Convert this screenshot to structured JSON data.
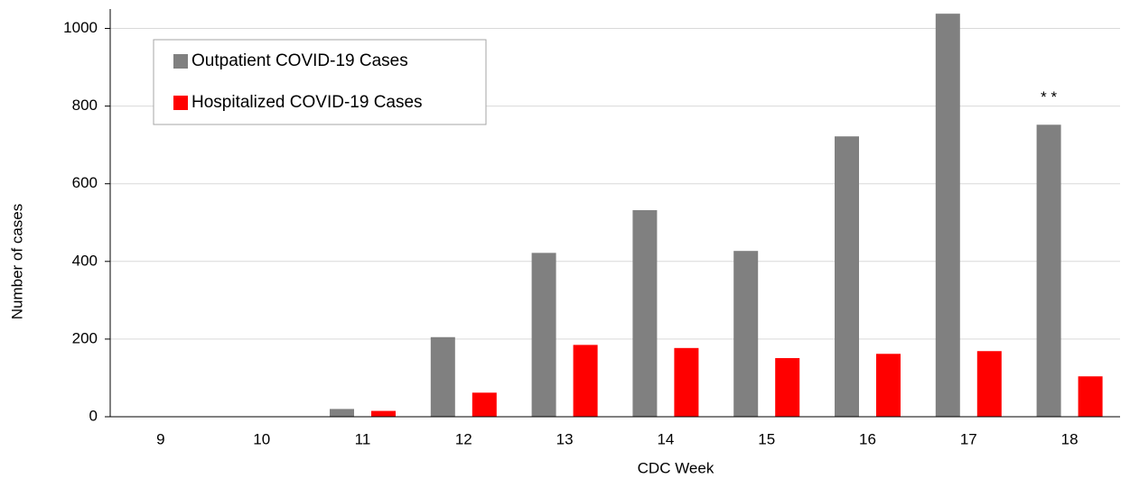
{
  "chart_data": {
    "type": "bar",
    "categories": [
      "9",
      "10",
      "11",
      "12",
      "13",
      "14",
      "15",
      "16",
      "17",
      "18"
    ],
    "series": [
      {
        "name": "Outpatient COVID-19 Cases",
        "color": "#808080",
        "values": [
          0,
          0,
          20,
          205,
          422,
          532,
          427,
          722,
          1038,
          752
        ]
      },
      {
        "name": "Hospitalized COVID-19 Cases",
        "color": "#ff0000",
        "values": [
          0,
          0,
          15,
          62,
          185,
          177,
          151,
          162,
          169,
          104
        ]
      }
    ],
    "xlabel": "CDC Week",
    "ylabel": "Number of cases",
    "ylim": [
      0,
      1050
    ],
    "yticks": [
      0,
      200,
      400,
      600,
      800,
      1000
    ],
    "grid": true,
    "legend": "upper left",
    "annotations": [
      "* *"
    ]
  }
}
